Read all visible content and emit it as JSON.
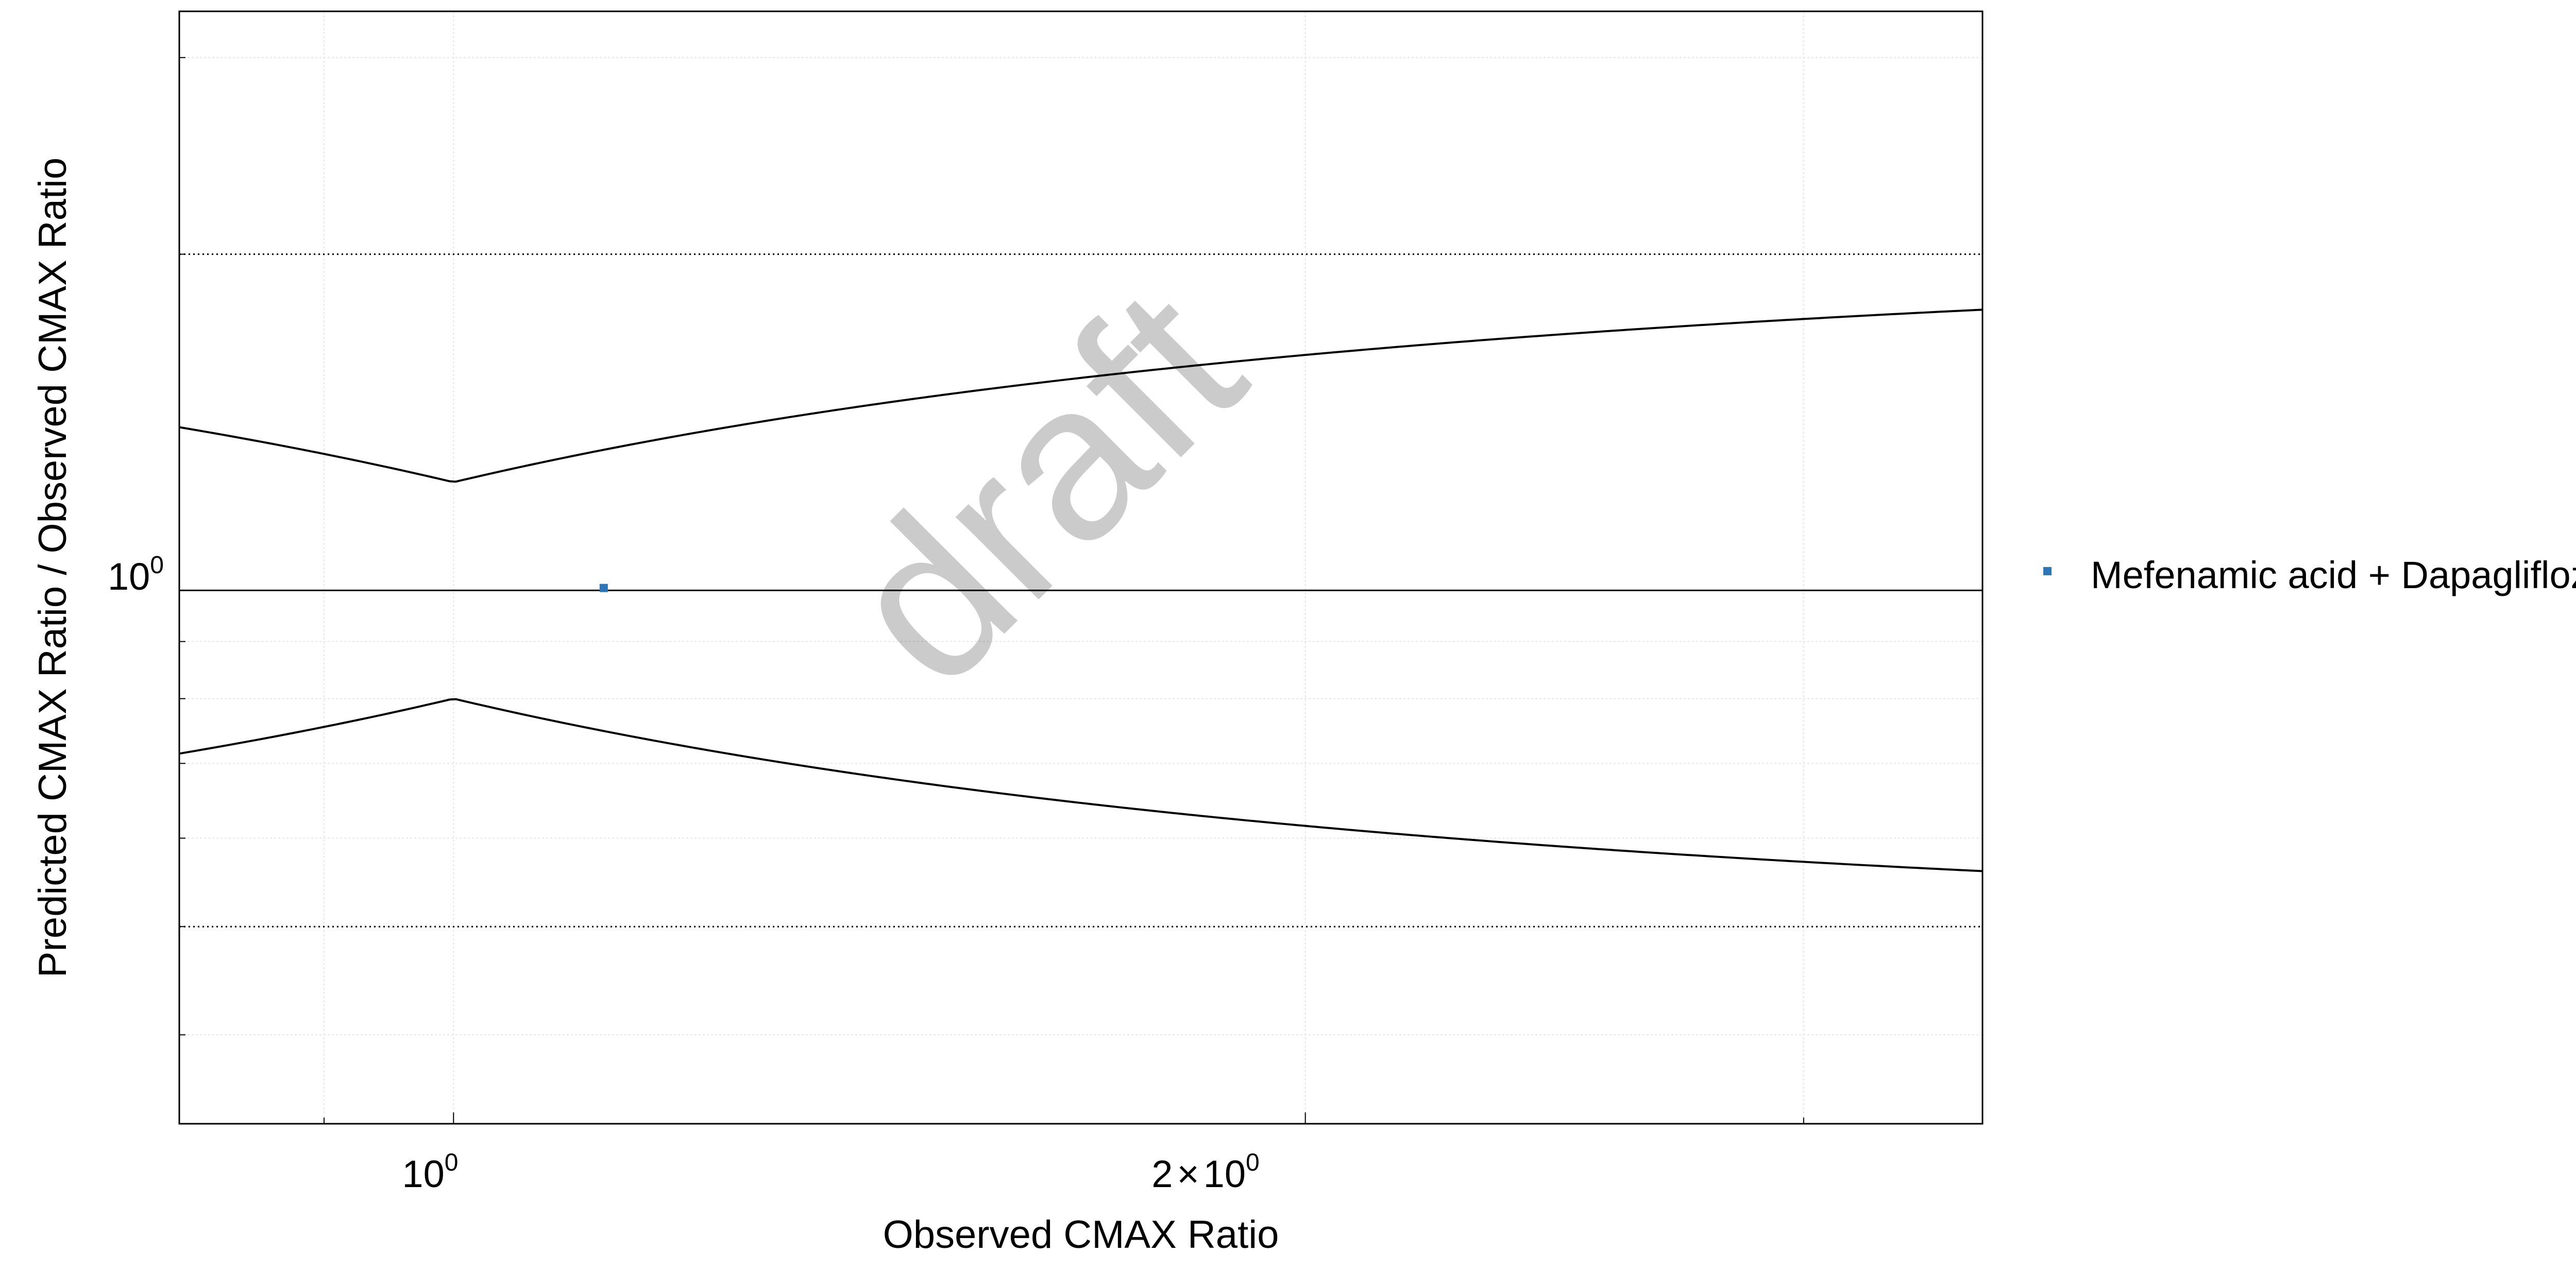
{
  "chart_data": {
    "type": "scatter",
    "xlabel": "Observed CMAX Ratio",
    "ylabel": "Predicted CMAX Ratio / Observed CMAX Ratio",
    "x_scale": "log",
    "y_scale": "log",
    "xlim": [
      0.8,
      3.47
    ],
    "ylim": [
      0.333,
      3.3
    ],
    "x_ticks": [
      {
        "value": 1,
        "base": "10",
        "exponent": "0"
      },
      {
        "value": 2,
        "mantissa": "2",
        "times": "×",
        "base": "10",
        "exponent": "0"
      }
    ],
    "y_ticks": [
      {
        "value": 1,
        "base": "10",
        "exponent": "0"
      }
    ],
    "grid": true,
    "reference_lines": {
      "identity": 1,
      "fold_limits": [
        0.5,
        2
      ],
      "guest_criteria_delta": 1.25
    },
    "series": [
      {
        "name": "Mefenamic acid + Dapagliflozin",
        "color": "#2E75B6",
        "marker": "square",
        "points": [
          {
            "x": 1.13,
            "y": 1.005
          }
        ]
      }
    ],
    "legend_position": "right",
    "watermark": "draft"
  }
}
